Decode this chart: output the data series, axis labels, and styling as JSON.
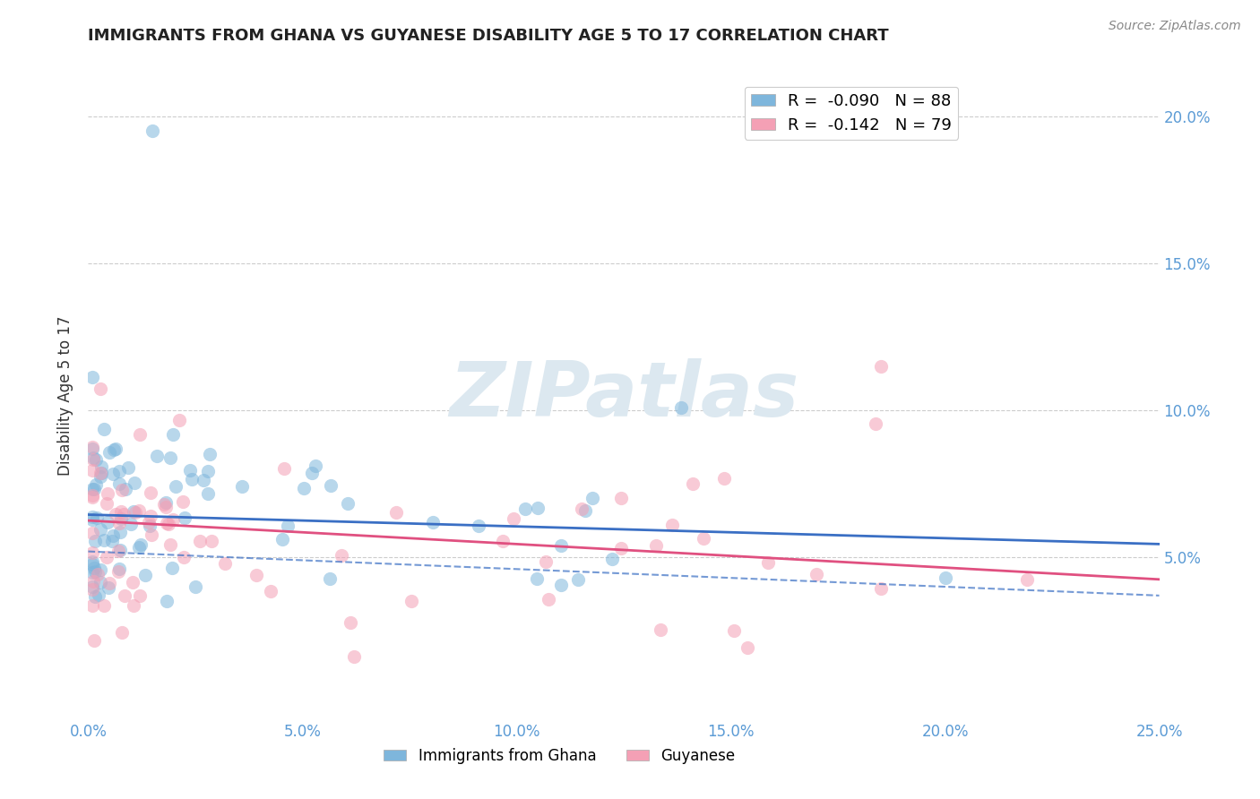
{
  "title": "IMMIGRANTS FROM GHANA VS GUYANESE DISABILITY AGE 5 TO 17 CORRELATION CHART",
  "source": "Source: ZipAtlas.com",
  "ylabel": "Disability Age 5 to 17",
  "xlim": [
    0.0,
    0.25
  ],
  "ylim": [
    -0.005,
    0.215
  ],
  "xtick_vals": [
    0.0,
    0.05,
    0.1,
    0.15,
    0.2,
    0.25
  ],
  "xtick_labels": [
    "0.0%",
    "5.0%",
    "10.0%",
    "15.0%",
    "20.0%",
    "25.0%"
  ],
  "ytick_vals": [
    0.05,
    0.1,
    0.15,
    0.2
  ],
  "ytick_labels": [
    "5.0%",
    "10.0%",
    "15.0%",
    "20.0%"
  ],
  "series1_label": "Immigrants from Ghana",
  "series2_label": "Guyanese",
  "color1": "#7eb6dc",
  "color2": "#f4a0b5",
  "trendline1_color": "#3a6fc4",
  "trendline2_color": "#e05080",
  "trendline1_dashed_color": "#8ab4d8",
  "R1": -0.09,
  "N1": 88,
  "R2": -0.142,
  "N2": 79,
  "background_color": "#ffffff",
  "grid_color": "#cccccc",
  "title_color": "#222222",
  "ylabel_color": "#333333",
  "tick_color": "#5b9bd5",
  "watermark_text": "ZIPatlas",
  "watermark_color": "#dce8f0",
  "seed1": 42,
  "seed2": 137
}
